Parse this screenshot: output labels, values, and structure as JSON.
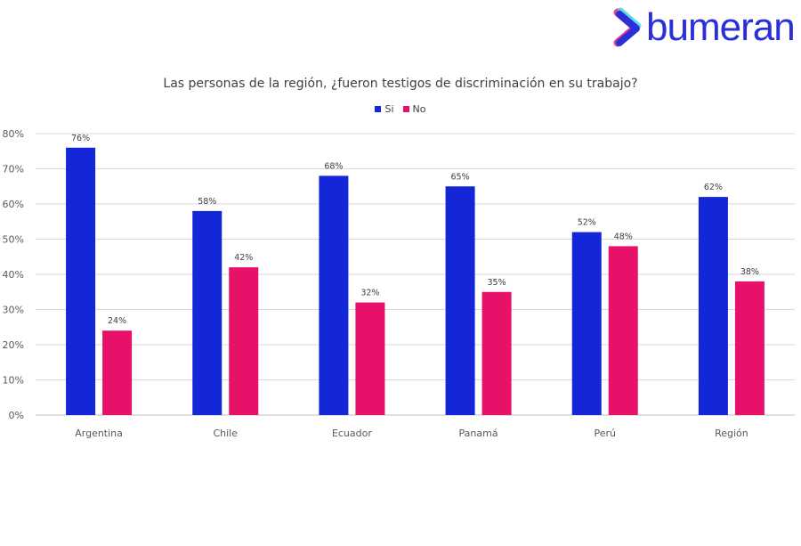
{
  "logo": {
    "text": "bumeran"
  },
  "chart_data": {
    "type": "bar",
    "title": "Las personas de la región, ¿fueron testigos de discriminación en su trabajo?",
    "categories": [
      "Argentina",
      "Chile",
      "Ecuador",
      "Panamá",
      "Perú",
      "Región"
    ],
    "series": [
      {
        "name": "Si",
        "color": "#1427d8",
        "values": [
          76,
          58,
          68,
          65,
          52,
          62
        ]
      },
      {
        "name": "No",
        "color": "#e8116a",
        "values": [
          24,
          42,
          32,
          35,
          48,
          38
        ]
      }
    ],
    "ylim": [
      0,
      80
    ],
    "yticks": [
      "0%",
      "10%",
      "20%",
      "30%",
      "40%",
      "50%",
      "60%",
      "70%",
      "80%"
    ],
    "value_suffix": "%",
    "grid": true,
    "legend": "top-center"
  }
}
